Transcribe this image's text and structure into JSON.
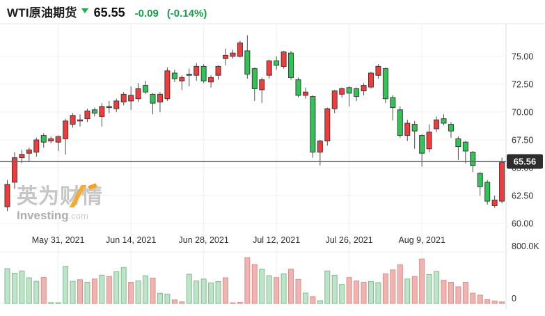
{
  "header": {
    "title": "WTI原油期货",
    "price": "65.55",
    "change": "-0.09",
    "change_pct": "(-0.14%)",
    "text_green": "#149e45"
  },
  "watermark": {
    "cn": "英为财情",
    "en": "Investing",
    "tld": ".com"
  },
  "chart_data": {
    "type": "candlestick+volume",
    "title": "WTI原油期货 daily candlestick chart with volume",
    "convention": "red = up day, green = down day",
    "y_ticks": [
      {
        "value": 75.0,
        "label": "75.00"
      },
      {
        "value": 72.5,
        "label": "72.50"
      },
      {
        "value": 70.0,
        "label": "70.00"
      },
      {
        "value": 67.5,
        "label": "67.50"
      },
      {
        "value": 65.0,
        "label": "65.00"
      },
      {
        "value": 62.5,
        "label": "62.50"
      },
      {
        "value": 60.0,
        "label": "60.00"
      }
    ],
    "ylim": [
      59.3,
      77.9
    ],
    "x_ticks": [
      {
        "index": 7,
        "label": "May 31, 2021"
      },
      {
        "index": 17,
        "label": "Jun 14, 2021"
      },
      {
        "index": 27,
        "label": "Jun 28, 2021"
      },
      {
        "index": 37,
        "label": "Jul 12, 2021"
      },
      {
        "index": 47,
        "label": "Jul 26, 2021"
      },
      {
        "index": 57,
        "label": "Aug 9, 2021"
      }
    ],
    "current_price": {
      "value": 65.56,
      "label": "65.56",
      "tag_bg": "#2d2d2d",
      "tag_text": "#ffffff",
      "line_color": "#666666"
    },
    "volume_axis": {
      "max_label": "800.0K",
      "min_label": "0",
      "max_value_k": 800
    },
    "colors": {
      "up_fill": "#f43b3c",
      "down_fill": "#2ec553",
      "body_stroke": "#3a3a3a",
      "wick": "#4d4d4d",
      "vol_up_fill": "#f0b3af",
      "vol_up_stroke": "#d98f8b",
      "vol_down_fill": "#bfe3c8",
      "vol_down_stroke": "#7dbd8d",
      "grid_h": "#f0f0f0",
      "grid_v": "#efefef",
      "axis_sep": "#dddddd",
      "label": "#2e2e2e"
    },
    "candles": [
      [
        61.5,
        63.9,
        61.1,
        63.5
      ],
      [
        63.7,
        66.4,
        63.1,
        65.9
      ],
      [
        65.9,
        66.6,
        65.4,
        66.2
      ],
      [
        66.3,
        66.8,
        65.5,
        66.6
      ],
      [
        66.4,
        67.7,
        66.0,
        67.5
      ],
      [
        67.9,
        68.1,
        66.8,
        67.3
      ],
      [
        67.4,
        67.8,
        67.2,
        67.6
      ],
      [
        67.3,
        67.9,
        66.5,
        67.8
      ],
      [
        67.6,
        69.4,
        66.2,
        69.2
      ],
      [
        68.9,
        69.9,
        68.6,
        69.7
      ],
      [
        69.2,
        69.8,
        68.7,
        69.3
      ],
      [
        69.4,
        70.3,
        69.1,
        70.1
      ],
      [
        70.2,
        70.4,
        69.6,
        69.9
      ],
      [
        69.6,
        70.8,
        68.7,
        70.5
      ],
      [
        70.4,
        71.0,
        69.9,
        70.5
      ],
      [
        70.3,
        71.2,
        70.0,
        71.0
      ],
      [
        70.9,
        71.8,
        70.6,
        71.6
      ],
      [
        71.0,
        72.3,
        70.2,
        71.5
      ],
      [
        71.2,
        72.6,
        70.9,
        72.1
      ],
      [
        72.4,
        72.8,
        71.6,
        71.8
      ],
      [
        71.6,
        71.7,
        69.8,
        70.8
      ],
      [
        70.9,
        71.8,
        70.0,
        71.6
      ],
      [
        71.2,
        74.0,
        71.0,
        73.7
      ],
      [
        73.5,
        73.8,
        72.7,
        73.0
      ],
      [
        72.8,
        73.3,
        72.0,
        73.1
      ],
      [
        73.3,
        73.9,
        72.3,
        73.4
      ],
      [
        73.3,
        74.4,
        72.8,
        74.1
      ],
      [
        74.1,
        74.3,
        72.6,
        72.8
      ],
      [
        72.7,
        73.3,
        72.2,
        73.1
      ],
      [
        73.3,
        74.2,
        72.9,
        74.1
      ],
      [
        74.8,
        75.7,
        74.2,
        75.1
      ],
      [
        75.0,
        75.6,
        74.8,
        75.3
      ],
      [
        75.0,
        76.4,
        74.9,
        76.2
      ],
      [
        75.5,
        76.9,
        73.0,
        73.4
      ],
      [
        73.9,
        74.0,
        71.0,
        72.1
      ],
      [
        72.0,
        73.1,
        70.8,
        72.9
      ],
      [
        73.3,
        74.7,
        73.0,
        74.6
      ],
      [
        74.6,
        75.0,
        73.8,
        74.2
      ],
      [
        74.1,
        75.5,
        73.9,
        75.4
      ],
      [
        75.3,
        75.5,
        72.9,
        73.1
      ],
      [
        72.9,
        73.1,
        71.3,
        71.5
      ],
      [
        71.5,
        72.2,
        71.2,
        71.8
      ],
      [
        71.4,
        71.5,
        65.9,
        66.4
      ],
      [
        66.4,
        67.5,
        65.2,
        67.4
      ],
      [
        67.4,
        70.4,
        67.0,
        70.3
      ],
      [
        70.3,
        72.0,
        69.9,
        71.9
      ],
      [
        71.6,
        72.2,
        71.3,
        72.1
      ],
      [
        72.2,
        72.3,
        70.5,
        71.7
      ],
      [
        72.1,
        72.2,
        71.0,
        71.4
      ],
      [
        71.9,
        72.6,
        71.5,
        72.4
      ],
      [
        72.25,
        73.6,
        72.1,
        73.5
      ],
      [
        73.3,
        74.3,
        73.0,
        74.1
      ],
      [
        73.9,
        74.0,
        70.8,
        71.2
      ],
      [
        71.3,
        71.5,
        69.25,
        70.4
      ],
      [
        70.2,
        70.5,
        67.7,
        67.9
      ],
      [
        67.9,
        69.3,
        67.4,
        69.0
      ],
      [
        68.9,
        69.2,
        66.7,
        68.3
      ],
      [
        67.9,
        68.0,
        65.1,
        66.3
      ],
      [
        66.7,
        68.9,
        66.4,
        68.2
      ],
      [
        68.5,
        69.6,
        68.2,
        69.3
      ],
      [
        69.4,
        69.8,
        68.8,
        69.0
      ],
      [
        68.9,
        69.1,
        67.7,
        68.3
      ],
      [
        67.6,
        67.8,
        65.7,
        66.9
      ],
      [
        67.3,
        67.4,
        65.4,
        66.5
      ],
      [
        66.4,
        66.5,
        64.6,
        65.2
      ],
      [
        64.5,
        64.6,
        62.5,
        63.3
      ],
      [
        63.7,
        63.9,
        61.7,
        62.0
      ],
      [
        61.6,
        62.5,
        61.4,
        62.1
      ],
      [
        62.0,
        65.9,
        61.8,
        65.5
      ]
    ],
    "volumes_k": [
      [
        540,
        "g"
      ],
      [
        470,
        "g"
      ],
      [
        505,
        "g"
      ],
      [
        400,
        "g"
      ],
      [
        345,
        "g"
      ],
      [
        405,
        "r"
      ],
      [
        12,
        "g"
      ],
      [
        8,
        "g"
      ],
      [
        575,
        "g"
      ],
      [
        345,
        "g"
      ],
      [
        370,
        "r"
      ],
      [
        330,
        "g"
      ],
      [
        380,
        "r"
      ],
      [
        440,
        "g"
      ],
      [
        420,
        "r"
      ],
      [
        495,
        "g"
      ],
      [
        560,
        "g"
      ],
      [
        330,
        "r"
      ],
      [
        350,
        "g"
      ],
      [
        430,
        "g"
      ],
      [
        395,
        "r"
      ],
      [
        160,
        "g"
      ],
      [
        145,
        "g"
      ],
      [
        55,
        "r"
      ],
      [
        25,
        "r"
      ],
      [
        455,
        "g"
      ],
      [
        350,
        "g"
      ],
      [
        380,
        "g"
      ],
      [
        320,
        "g"
      ],
      [
        340,
        "g"
      ],
      [
        400,
        "r"
      ],
      [
        10,
        "r"
      ],
      [
        15,
        "r"
      ],
      [
        713,
        "r"
      ],
      [
        605,
        "r"
      ],
      [
        533,
        "g"
      ],
      [
        432,
        "g"
      ],
      [
        403,
        "r"
      ],
      [
        461,
        "g"
      ],
      [
        533,
        "r"
      ],
      [
        375,
        "r"
      ],
      [
        162,
        "g"
      ],
      [
        108,
        "r"
      ],
      [
        43,
        "g"
      ],
      [
        505,
        "g"
      ],
      [
        440,
        "g"
      ],
      [
        295,
        "g"
      ],
      [
        403,
        "r"
      ],
      [
        350,
        "r"
      ],
      [
        330,
        "r"
      ],
      [
        340,
        "g"
      ],
      [
        324,
        "g"
      ],
      [
        461,
        "r"
      ],
      [
        522,
        "r"
      ],
      [
        600,
        "r"
      ],
      [
        380,
        "g"
      ],
      [
        420,
        "r"
      ],
      [
        690,
        "r"
      ],
      [
        450,
        "g"
      ],
      [
        500,
        "g"
      ],
      [
        360,
        "r"
      ],
      [
        330,
        "r"
      ],
      [
        260,
        "r"
      ],
      [
        330,
        "r"
      ],
      [
        160,
        "r"
      ],
      [
        130,
        "r"
      ],
      [
        60,
        "r"
      ],
      [
        40,
        "r"
      ],
      [
        25,
        "r"
      ]
    ]
  }
}
